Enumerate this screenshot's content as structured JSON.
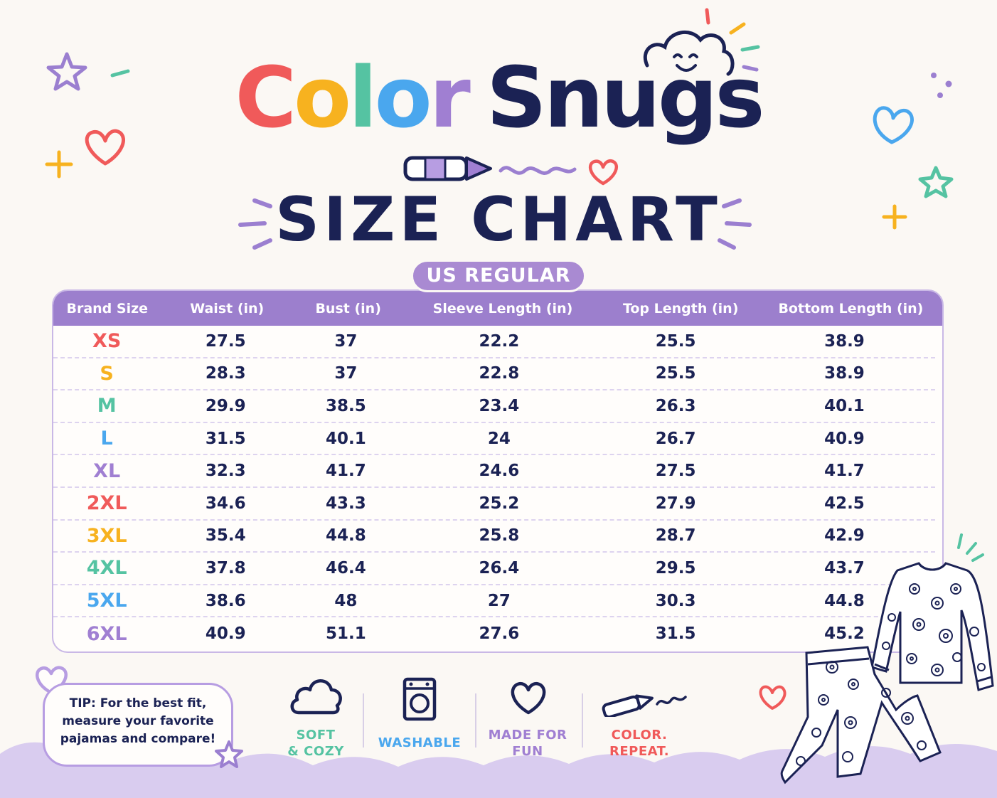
{
  "brand": {
    "word1_letters": [
      "C",
      "o",
      "l",
      "o",
      "r"
    ],
    "word1_colors": [
      "#f05a5a",
      "#f7b21f",
      "#55c3a2",
      "#4aa7ee",
      "#a07fd2"
    ],
    "word2": "Snugs"
  },
  "title": "SIZE CHART",
  "region_badge": "US REGULAR",
  "table": {
    "headers": [
      "Brand Size",
      "Waist (in)",
      "Bust (in)",
      "Sleeve Length (in)",
      "Top Length (in)",
      "Bottom Length (in)"
    ],
    "rows": [
      {
        "size": "XS",
        "color": "#f05a5a",
        "values": [
          "27.5",
          "37",
          "22.2",
          "25.5",
          "38.9"
        ]
      },
      {
        "size": "S",
        "color": "#f7b21f",
        "values": [
          "28.3",
          "37",
          "22.8",
          "25.5",
          "38.9"
        ]
      },
      {
        "size": "M",
        "color": "#55c3a2",
        "values": [
          "29.9",
          "38.5",
          "23.4",
          "26.3",
          "40.1"
        ]
      },
      {
        "size": "L",
        "color": "#4aa7ee",
        "values": [
          "31.5",
          "40.1",
          "24",
          "26.7",
          "40.9"
        ]
      },
      {
        "size": "XL",
        "color": "#a07fd2",
        "values": [
          "32.3",
          "41.7",
          "24.6",
          "27.5",
          "41.7"
        ]
      },
      {
        "size": "2XL",
        "color": "#f05a5a",
        "values": [
          "34.6",
          "43.3",
          "25.2",
          "27.9",
          "42.5"
        ]
      },
      {
        "size": "3XL",
        "color": "#f7b21f",
        "values": [
          "35.4",
          "44.8",
          "25.8",
          "28.7",
          "42.9"
        ]
      },
      {
        "size": "4XL",
        "color": "#55c3a2",
        "values": [
          "37.8",
          "46.4",
          "26.4",
          "29.5",
          "43.7"
        ]
      },
      {
        "size": "5XL",
        "color": "#4aa7ee",
        "values": [
          "38.6",
          "48",
          "27",
          "30.3",
          "44.8"
        ]
      },
      {
        "size": "6XL",
        "color": "#a07fd2",
        "values": [
          "40.9",
          "51.1",
          "27.6",
          "31.5",
          "45.2"
        ]
      }
    ]
  },
  "tip": {
    "lines": [
      "TIP: For the best fit,",
      "measure your favorite",
      "pajamas and compare!"
    ]
  },
  "features": [
    {
      "icon": "cloud-icon",
      "lines": [
        "SOFT",
        "& COZY"
      ],
      "color": "#55c3a2"
    },
    {
      "icon": "washing-machine-icon",
      "lines": [
        "WASHABLE"
      ],
      "color": "#4aa7ee"
    },
    {
      "icon": "heart-icon",
      "lines": [
        "MADE FOR",
        "FUN"
      ],
      "color": "#a07fd2"
    },
    {
      "icon": "crayon-icon",
      "lines": [
        "COLOR.",
        "REPEAT."
      ],
      "color": "#f05a5a"
    }
  ],
  "colors": {
    "navy": "#1b2254",
    "purple": "#9c7fcd",
    "background": "#fbf8f4"
  }
}
